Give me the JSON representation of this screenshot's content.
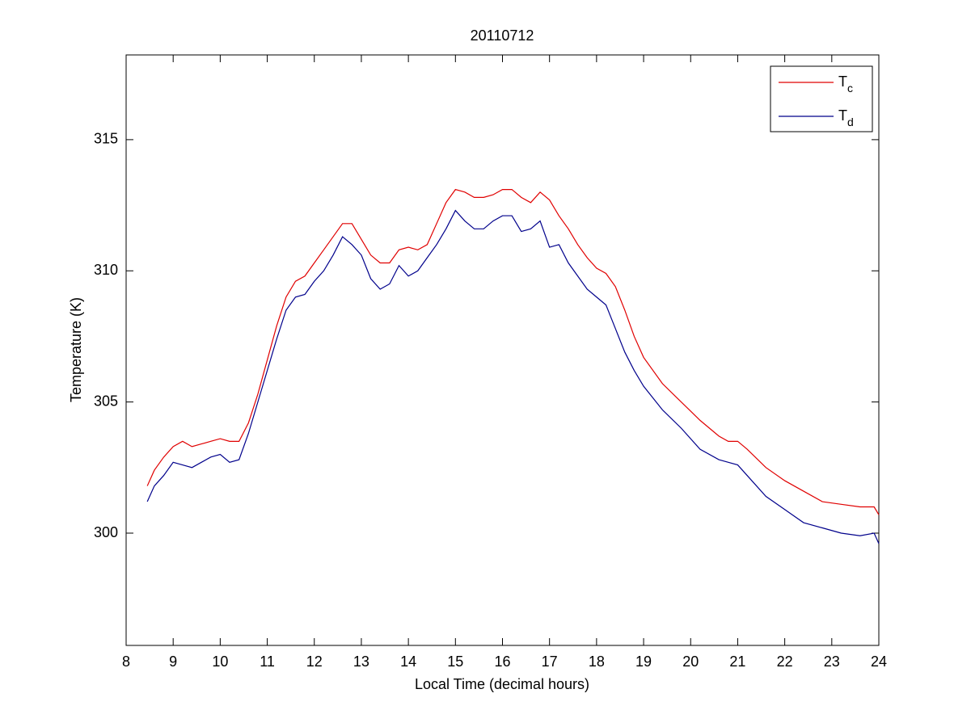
{
  "chart_data": {
    "type": "line",
    "title": "20110712",
    "x_label": "Local Time (decimal hours)",
    "y_label": "Temperature (K)",
    "xlim": [
      8,
      24
    ],
    "xticks": [
      8,
      9,
      10,
      11,
      12,
      13,
      14,
      15,
      16,
      17,
      18,
      19,
      20,
      21,
      22,
      23,
      24
    ],
    "ylim": [
      295.72,
      318.23
    ],
    "yticks": [
      300,
      305,
      310,
      315
    ],
    "legend": "upper right",
    "x": [
      8.45,
      8.6,
      8.8,
      9.0,
      9.2,
      9.4,
      9.6,
      9.8,
      10.0,
      10.2,
      10.4,
      10.6,
      10.8,
      11.0,
      11.2,
      11.4,
      11.6,
      11.8,
      12.0,
      12.2,
      12.4,
      12.6,
      12.8,
      13.0,
      13.2,
      13.4,
      13.6,
      13.8,
      14.0,
      14.2,
      14.4,
      14.6,
      14.8,
      15.0,
      15.2,
      15.4,
      15.6,
      15.8,
      16.0,
      16.2,
      16.4,
      16.6,
      16.8,
      17.0,
      17.2,
      17.4,
      17.6,
      17.8,
      18.0,
      18.2,
      18.4,
      18.6,
      18.8,
      19.0,
      19.4,
      19.8,
      20.2,
      20.6,
      20.8,
      21.0,
      21.2,
      21.6,
      22.0,
      22.4,
      22.8,
      23.2,
      23.6,
      23.9,
      24.0
    ],
    "series": [
      {
        "name": "Tc",
        "color": "#e00000",
        "values": [
          301.8,
          302.4,
          302.9,
          303.3,
          303.5,
          303.3,
          303.4,
          303.5,
          303.6,
          303.5,
          303.5,
          304.2,
          305.3,
          306.6,
          307.9,
          309.0,
          309.6,
          309.8,
          310.3,
          310.8,
          311.3,
          311.8,
          311.8,
          311.2,
          310.6,
          310.3,
          310.3,
          310.8,
          310.9,
          310.8,
          311.0,
          311.8,
          312.6,
          313.1,
          313.0,
          312.8,
          312.8,
          312.9,
          313.1,
          313.1,
          312.8,
          312.6,
          313.0,
          312.7,
          312.1,
          311.6,
          311.0,
          310.5,
          310.1,
          309.9,
          309.4,
          308.5,
          307.5,
          306.7,
          305.7,
          305.0,
          304.3,
          303.7,
          303.5,
          303.5,
          303.2,
          302.5,
          302.0,
          301.6,
          301.2,
          301.1,
          301.0,
          301.0,
          300.7
        ]
      },
      {
        "name": "Td",
        "color": "#00008b",
        "values": [
          301.2,
          301.8,
          302.2,
          302.7,
          302.6,
          302.5,
          302.7,
          302.9,
          303.0,
          302.7,
          302.8,
          303.8,
          305.0,
          306.2,
          307.4,
          308.5,
          309.0,
          309.1,
          309.6,
          310.0,
          310.6,
          311.3,
          311.0,
          310.6,
          309.7,
          309.3,
          309.5,
          310.2,
          309.8,
          310.0,
          310.5,
          311.0,
          311.6,
          312.3,
          311.9,
          311.6,
          311.6,
          311.9,
          312.1,
          312.1,
          311.5,
          311.6,
          311.9,
          310.9,
          311.0,
          310.3,
          309.8,
          309.3,
          309.0,
          308.7,
          307.8,
          306.9,
          306.2,
          305.6,
          304.7,
          304.0,
          303.2,
          302.8,
          302.7,
          302.6,
          302.2,
          301.4,
          300.9,
          300.4,
          300.2,
          300.0,
          299.9,
          300.0,
          299.6
        ]
      }
    ]
  }
}
